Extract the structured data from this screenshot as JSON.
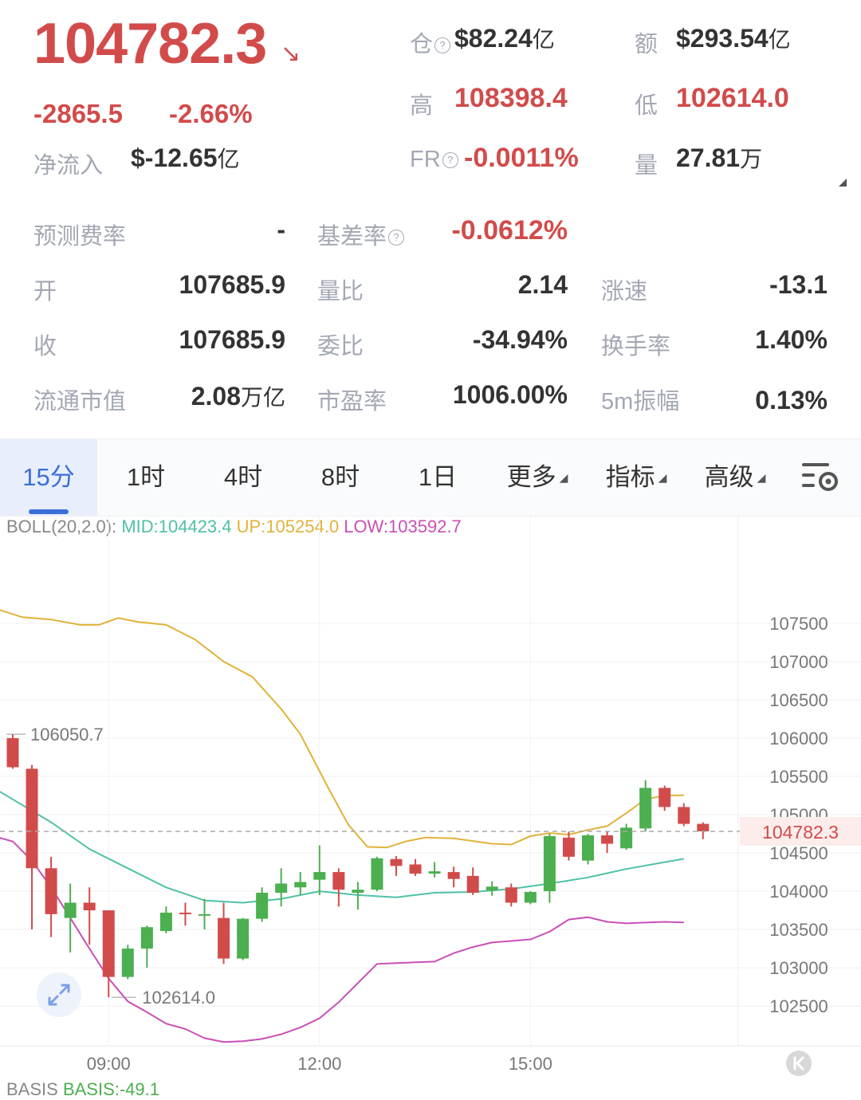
{
  "ticker": {
    "price": "104782.3",
    "arrow": "↘",
    "change": "-2865.5",
    "change_pct": "-2.66%",
    "net_inflow_label": "净流入",
    "net_inflow_value": "$-12.65",
    "net_inflow_unit": "亿"
  },
  "stats": {
    "oi_label": "仓",
    "oi_value": "$82.24",
    "oi_unit": "亿",
    "amount_label": "额",
    "amount_value": "$293.54",
    "amount_unit": "亿",
    "high_label": "高",
    "high_value": "108398.4",
    "low_label": "低",
    "low_value": "102614.0",
    "fr_label": "FR",
    "fr_value": "-0.0011%",
    "vol_label": "量",
    "vol_value": "27.81",
    "vol_unit": "万"
  },
  "grid": {
    "pred_fee_label": "预测费率",
    "pred_fee_value": "-",
    "basis_rate_label": "基差率",
    "basis_rate_value": "-0.0612%",
    "open_label": "开",
    "open_value": "107685.9",
    "vol_ratio_label": "量比",
    "vol_ratio_value": "2.14",
    "speed_label": "涨速",
    "speed_value": "-13.1",
    "close_label": "收",
    "close_value": "107685.9",
    "commission_label": "委比",
    "commission_value": "-34.94%",
    "turnover_label": "换手率",
    "turnover_value": "1.40%",
    "mcap_label": "流通市值",
    "mcap_value": "2.08",
    "mcap_unit": "万亿",
    "pe_label": "市盈率",
    "pe_value": "1006.00%",
    "amp_label": "5m振幅",
    "amp_value": "0.13%"
  },
  "tabs": [
    {
      "label": "15分",
      "active": true
    },
    {
      "label": "1时"
    },
    {
      "label": "4时"
    },
    {
      "label": "8时"
    },
    {
      "label": "1日"
    },
    {
      "label": "更多"
    },
    {
      "label": "指标"
    },
    {
      "label": "高级"
    }
  ],
  "boll": {
    "name": "BOLL(20,2.0):",
    "mid": "MID:104423.4",
    "up": "UP:105254.0",
    "low": "LOW:103592.7"
  },
  "colors": {
    "up": "#4caf50",
    "down": "#d24b4b",
    "mid": "#4fc1a6",
    "upper": "#e0b23a",
    "lower": "#c94fb5",
    "accent": "#3b6fd8"
  },
  "chart_data": {
    "type": "candlestick",
    "y_ticks": [
      107500,
      107000,
      106500,
      106000,
      105500,
      105000,
      104500,
      104000,
      103500,
      103000,
      102500
    ],
    "ylim": [
      101980,
      108500
    ],
    "x_ticks": [
      {
        "label": "09:00",
        "index": 5
      },
      {
        "label": "12:00",
        "index": 16
      },
      {
        "label": "15:00",
        "index": 27
      }
    ],
    "last_price": 104782.3,
    "last_price_label": "104782.3",
    "max_marker": {
      "label": "106050.7",
      "value": 106050.7,
      "index": 0
    },
    "min_marker": {
      "label": "102614.0",
      "value": 102614.0,
      "index": 5
    },
    "candles": [
      {
        "o": 106000,
        "h": 106050.7,
        "l": 105600,
        "c": 105620
      },
      {
        "o": 105600,
        "h": 105650,
        "l": 103500,
        "c": 104300
      },
      {
        "o": 104300,
        "h": 104450,
        "l": 103400,
        "c": 103700
      },
      {
        "o": 103650,
        "h": 104100,
        "l": 103200,
        "c": 103850
      },
      {
        "o": 103850,
        "h": 104050,
        "l": 103300,
        "c": 103750
      },
      {
        "o": 103750,
        "h": 103750,
        "l": 102614,
        "c": 102880
      },
      {
        "o": 102880,
        "h": 103300,
        "l": 102850,
        "c": 103250
      },
      {
        "o": 103250,
        "h": 103550,
        "l": 103000,
        "c": 103530
      },
      {
        "o": 103480,
        "h": 103800,
        "l": 103450,
        "c": 103720
      },
      {
        "o": 103720,
        "h": 103850,
        "l": 103550,
        "c": 103700
      },
      {
        "o": 103700,
        "h": 103900,
        "l": 103500,
        "c": 103700
      },
      {
        "o": 103650,
        "h": 103850,
        "l": 103050,
        "c": 103120
      },
      {
        "o": 103120,
        "h": 103650,
        "l": 103100,
        "c": 103640
      },
      {
        "o": 103640,
        "h": 104050,
        "l": 103600,
        "c": 103980
      },
      {
        "o": 103980,
        "h": 104300,
        "l": 103800,
        "c": 104100
      },
      {
        "o": 104050,
        "h": 104250,
        "l": 103950,
        "c": 104120
      },
      {
        "o": 104150,
        "h": 104600,
        "l": 103950,
        "c": 104250
      },
      {
        "o": 104250,
        "h": 104300,
        "l": 103800,
        "c": 104020
      },
      {
        "o": 103980,
        "h": 104120,
        "l": 103760,
        "c": 104020
      },
      {
        "o": 104020,
        "h": 104450,
        "l": 104000,
        "c": 104430
      },
      {
        "o": 104420,
        "h": 104460,
        "l": 104200,
        "c": 104330
      },
      {
        "o": 104350,
        "h": 104420,
        "l": 104200,
        "c": 104230
      },
      {
        "o": 104230,
        "h": 104380,
        "l": 104180,
        "c": 104260
      },
      {
        "o": 104250,
        "h": 104320,
        "l": 104050,
        "c": 104160
      },
      {
        "o": 104200,
        "h": 104310,
        "l": 103950,
        "c": 103980
      },
      {
        "o": 104010,
        "h": 104130,
        "l": 103940,
        "c": 104060
      },
      {
        "o": 104050,
        "h": 104100,
        "l": 103800,
        "c": 103850
      },
      {
        "o": 103850,
        "h": 104000,
        "l": 103830,
        "c": 103990
      },
      {
        "o": 104000,
        "h": 104750,
        "l": 103850,
        "c": 104720
      },
      {
        "o": 104700,
        "h": 104780,
        "l": 104400,
        "c": 104450
      },
      {
        "o": 104400,
        "h": 104750,
        "l": 104350,
        "c": 104730
      },
      {
        "o": 104730,
        "h": 104780,
        "l": 104500,
        "c": 104620
      },
      {
        "o": 104560,
        "h": 104880,
        "l": 104540,
        "c": 104830
      },
      {
        "o": 104820,
        "h": 105450,
        "l": 104780,
        "c": 105350
      },
      {
        "o": 105350,
        "h": 105380,
        "l": 105050,
        "c": 105100
      },
      {
        "o": 105100,
        "h": 105150,
        "l": 104850,
        "c": 104880
      },
      {
        "o": 104880,
        "h": 104900,
        "l": 104680,
        "c": 104782.3
      }
    ],
    "bands": {
      "up": [
        [
          -1,
          107700
        ],
        [
          0.5,
          107580
        ],
        [
          2,
          107550
        ],
        [
          3.5,
          107480
        ],
        [
          4.5,
          107480
        ],
        [
          5.5,
          107570
        ],
        [
          6.5,
          107520
        ],
        [
          8,
          107480
        ],
        [
          9.5,
          107290
        ],
        [
          11,
          107000
        ],
        [
          12.5,
          106800
        ],
        [
          14,
          106380
        ],
        [
          15,
          106050
        ],
        [
          16.5,
          105330
        ],
        [
          17.5,
          104870
        ],
        [
          18.5,
          104580
        ],
        [
          19.5,
          104570
        ],
        [
          20.5,
          104650
        ],
        [
          21.5,
          104700
        ],
        [
          23,
          104690
        ],
        [
          25,
          104620
        ],
        [
          26,
          104610
        ],
        [
          27,
          104720
        ],
        [
          28,
          104760
        ],
        [
          29,
          104740
        ],
        [
          30,
          104800
        ],
        [
          31,
          104850
        ],
        [
          32,
          105020
        ],
        [
          33,
          105200
        ],
        [
          34,
          105250
        ],
        [
          35,
          105254
        ]
      ],
      "mid": [
        [
          -1,
          105850
        ],
        [
          0,
          105700
        ],
        [
          1.5,
          105380
        ],
        [
          3,
          105050
        ],
        [
          4.5,
          104800
        ],
        [
          6,
          104560
        ],
        [
          7.5,
          104380
        ],
        [
          9,
          104150
        ],
        [
          10.5,
          103950
        ],
        [
          12,
          103750
        ],
        [
          13,
          103650
        ],
        [
          14,
          103460
        ],
        [
          15,
          103370
        ],
        [
          16,
          103210
        ],
        [
          17,
          103050
        ],
        [
          18,
          102920
        ],
        [
          19,
          102850
        ],
        [
          20,
          102850
        ],
        [
          21,
          102860
        ],
        [
          22,
          102870
        ],
        [
          23,
          102880
        ],
        [
          24,
          102930
        ],
        [
          25,
          102990
        ],
        [
          26,
          103040
        ],
        [
          27,
          103060
        ],
        [
          28,
          103150
        ],
        [
          29,
          103220
        ],
        [
          30,
          103250
        ],
        [
          31,
          103300
        ],
        [
          32,
          103360
        ],
        [
          33,
          103500
        ],
        [
          34,
          103550
        ],
        [
          35,
          103592.7
        ]
      ]
    },
    "mid": [
      [
        -1,
        105350
      ],
      [
        0,
        105200
      ],
      [
        2,
        104900
      ],
      [
        4,
        104550
      ],
      [
        6,
        104300
      ],
      [
        8,
        104050
      ],
      [
        10,
        103880
      ],
      [
        12,
        103850
      ],
      [
        14,
        103900
      ],
      [
        16,
        104000
      ],
      [
        18,
        103950
      ],
      [
        20,
        103920
      ],
      [
        22,
        103980
      ],
      [
        24,
        103990
      ],
      [
        26,
        104030
      ],
      [
        28,
        104100
      ],
      [
        30,
        104180
      ],
      [
        32,
        104290
      ],
      [
        34,
        104380
      ],
      [
        35,
        104423.4
      ]
    ],
    "lower": [
      [
        -1,
        104720
      ],
      [
        0,
        104650
      ],
      [
        1,
        104400
      ],
      [
        2,
        104050
      ],
      [
        3,
        103650
      ],
      [
        4,
        103250
      ],
      [
        5,
        102860
      ],
      [
        6,
        102560
      ],
      [
        7,
        102420
      ],
      [
        8,
        102270
      ],
      [
        9,
        102200
      ],
      [
        10,
        102080
      ],
      [
        11,
        102030
      ],
      [
        12,
        102040
      ],
      [
        13,
        102070
      ],
      [
        14,
        102130
      ],
      [
        15,
        102220
      ],
      [
        16,
        102340
      ],
      [
        17,
        102550
      ],
      [
        18,
        102800
      ],
      [
        19,
        103050
      ],
      [
        20,
        103060
      ],
      [
        21,
        103070
      ],
      [
        22,
        103080
      ],
      [
        23,
        103190
      ],
      [
        24,
        103270
      ],
      [
        25,
        103330
      ],
      [
        26,
        103350
      ],
      [
        27,
        103370
      ],
      [
        28,
        103470
      ],
      [
        29,
        103630
      ],
      [
        30,
        103660
      ],
      [
        31,
        103600
      ],
      [
        32,
        103580
      ],
      [
        33,
        103590
      ],
      [
        34,
        103600
      ],
      [
        35,
        103592.7
      ]
    ]
  },
  "basis": {
    "name": "BASIS",
    "value": "BASIS:-49.1"
  }
}
